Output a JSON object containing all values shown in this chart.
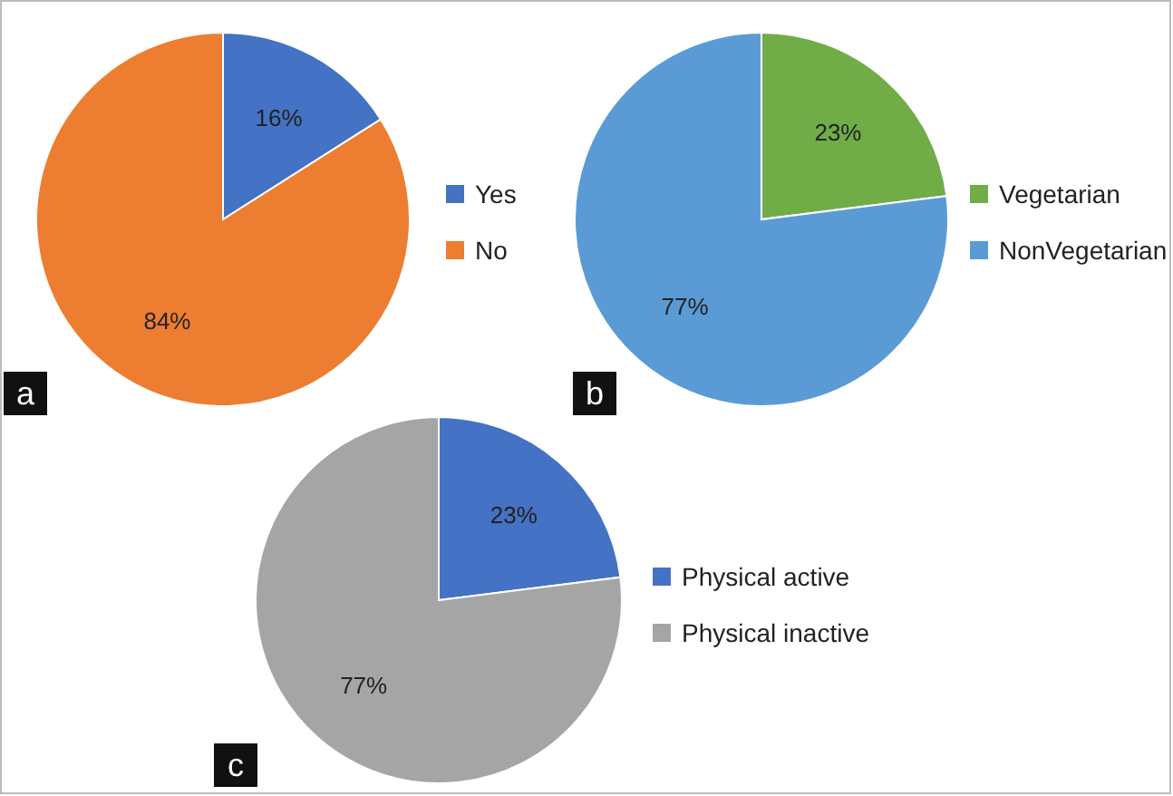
{
  "chart_data": [
    {
      "type": "pie",
      "categories": [
        "Yes",
        "No"
      ],
      "values": [
        16,
        84
      ],
      "value_labels": [
        "16%",
        "84%"
      ],
      "colors": [
        "#4472c4",
        "#ed7d31"
      ],
      "legend": "right",
      "annotations": [
        "a"
      ]
    },
    {
      "type": "pie",
      "categories": [
        "Vegetarian",
        "NonVegetarian"
      ],
      "values": [
        23,
        77
      ],
      "value_labels": [
        "23%",
        "77%"
      ],
      "colors": [
        "#70ad47",
        "#5b9bd5"
      ],
      "legend": "right",
      "annotations": [
        "b"
      ]
    },
    {
      "type": "pie",
      "categories": [
        "Physical active",
        "Physical inactive"
      ],
      "values": [
        23,
        77
      ],
      "value_labels": [
        "23%",
        "77%"
      ],
      "colors": [
        "#4472c4",
        "#a5a5a5"
      ],
      "legend": "right",
      "annotations": [
        "c"
      ]
    }
  ]
}
